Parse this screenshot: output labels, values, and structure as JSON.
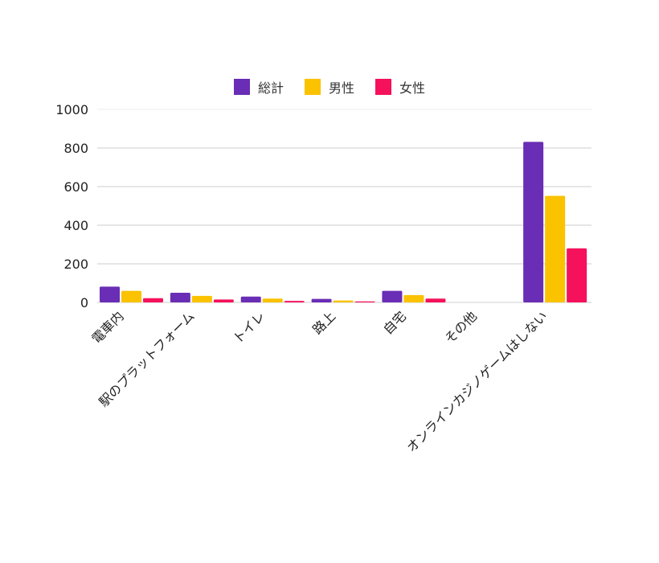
{
  "chart_data": {
    "type": "bar",
    "title": "",
    "xlabel": "",
    "ylabel": "",
    "categories": [
      "電車内",
      "駅のプラットフォーム",
      "トイレ",
      "路上",
      "自宅",
      "その他",
      "オンラインカジノゲームはしない"
    ],
    "series": [
      {
        "name": "総計",
        "color": "#6a2db5",
        "values": [
          82,
          50,
          30,
          18,
          60,
          0,
          832
        ]
      },
      {
        "name": "男性",
        "color": "#fbc200",
        "values": [
          60,
          34,
          20,
          10,
          38,
          0,
          552
        ]
      },
      {
        "name": "女性",
        "color": "#f5115b",
        "values": [
          22,
          15,
          8,
          5,
          20,
          0,
          280
        ]
      }
    ],
    "ylim": [
      0,
      1000
    ],
    "yticks": [
      0,
      200,
      400,
      600,
      800,
      1000
    ],
    "grid": true,
    "legend_position": "top-center"
  }
}
